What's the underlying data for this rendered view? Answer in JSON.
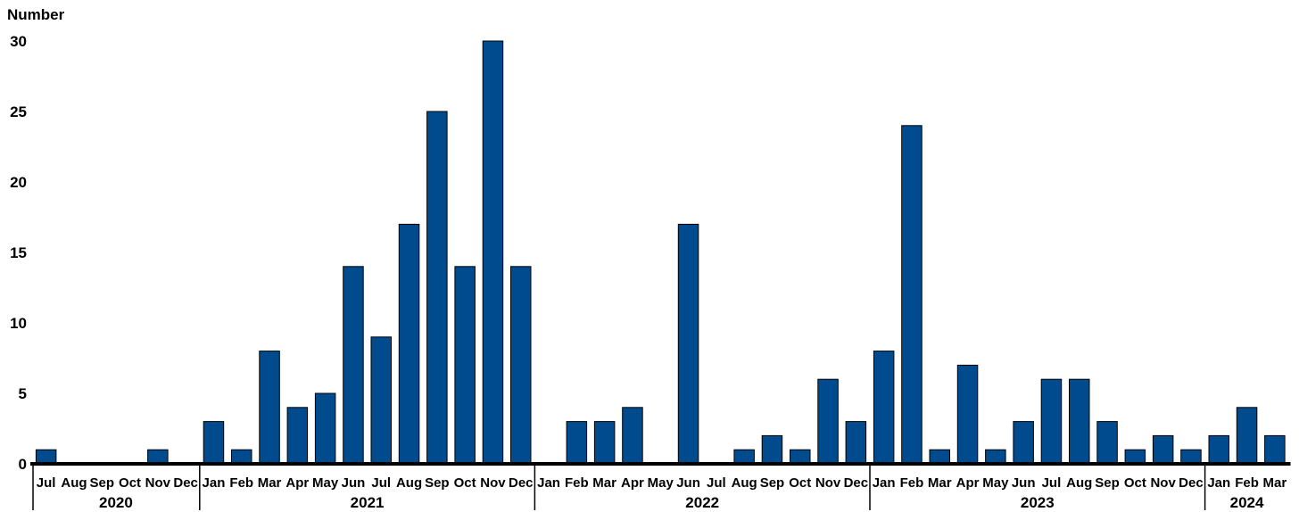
{
  "chart_data": {
    "type": "bar",
    "ylabel": "Number",
    "ylim": [
      0,
      30
    ],
    "yticks": [
      0,
      5,
      10,
      15,
      20,
      25,
      30
    ],
    "grid": false,
    "bar_color": "#004B8D",
    "categories": [
      "Jul",
      "Aug",
      "Sep",
      "Oct",
      "Nov",
      "Dec",
      "Jan",
      "Feb",
      "Mar",
      "Apr",
      "May",
      "Jun",
      "Jul",
      "Aug",
      "Sep",
      "Oct",
      "Nov",
      "Dec",
      "Jan",
      "Feb",
      "Mar",
      "Apr",
      "May",
      "Jun",
      "Jul",
      "Aug",
      "Sep",
      "Oct",
      "Nov",
      "Dec",
      "Jan",
      "Feb",
      "Mar",
      "Apr",
      "May",
      "Jun",
      "Jul",
      "Aug",
      "Sep",
      "Oct",
      "Nov",
      "Dec",
      "Jan",
      "Feb",
      "Mar"
    ],
    "years": [
      {
        "label": "2020",
        "count": 6
      },
      {
        "label": "2021",
        "count": 12
      },
      {
        "label": "2022",
        "count": 12
      },
      {
        "label": "2023",
        "count": 12
      },
      {
        "label": "2024",
        "count": 3
      }
    ],
    "values": [
      1,
      0,
      0,
      0,
      1,
      0,
      3,
      1,
      8,
      4,
      5,
      14,
      9,
      17,
      25,
      14,
      30,
      14,
      0,
      3,
      3,
      4,
      0,
      17,
      0,
      1,
      2,
      1,
      6,
      3,
      8,
      24,
      1,
      7,
      1,
      3,
      6,
      6,
      3,
      1,
      2,
      1,
      2,
      4,
      2
    ]
  }
}
